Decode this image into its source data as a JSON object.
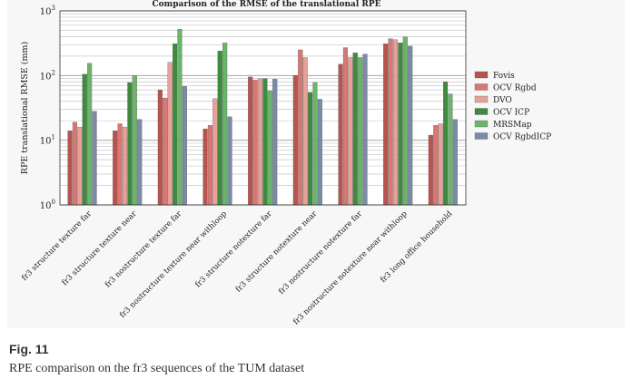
{
  "figure": {
    "label": "Fig. 11",
    "caption": "RPE comparison on the fr3 sequences of the TUM dataset"
  },
  "colors": {
    "Fovis": "#b85450",
    "OCV Rgbd": "#d97872",
    "DVO": "#e8a09a",
    "OCV ICP": "#3f8a3f",
    "MRSMap": "#6bb56b",
    "OCV RgbdICP": "#7b8ba6"
  },
  "chart_data": {
    "type": "bar",
    "title": "Comparison of the RMSE of the translational RPE",
    "ylabel": "RPE translational RMSE (mm)",
    "xlabel": "",
    "yscale": "log",
    "ylim": [
      1,
      1000
    ],
    "yticks": [
      {
        "value": 1,
        "base": "10",
        "exp": "0"
      },
      {
        "value": 10,
        "base": "10",
        "exp": "1"
      },
      {
        "value": 100,
        "base": "10",
        "exp": "2"
      },
      {
        "value": 1000,
        "base": "10",
        "exp": "3"
      }
    ],
    "grid": true,
    "legend_position": "right",
    "categories": [
      "fr3 structure texture far",
      "fr3 structure texture near",
      "fr3 nostructure texture far",
      "fr3 nostructure texture near withloop",
      "fr3 structure notexture far",
      "fr3 structure notexture near",
      "fr3 nostructure notexture far",
      "fr3 nostructure notexture near withloop",
      "fr3 long office household"
    ],
    "series": [
      {
        "name": "Fovis",
        "values": [
          14,
          14,
          60,
          15,
          95,
          100,
          150,
          310,
          12
        ]
      },
      {
        "name": "OCV Rgbd",
        "values": [
          19,
          18,
          45,
          17,
          85,
          250,
          270,
          370,
          17
        ]
      },
      {
        "name": "DVO",
        "values": [
          16,
          16,
          160,
          44,
          90,
          190,
          190,
          360,
          18
        ]
      },
      {
        "name": "OCV ICP",
        "values": [
          105,
          78,
          310,
          240,
          90,
          55,
          225,
          320,
          80
        ]
      },
      {
        "name": "MRSMap",
        "values": [
          155,
          100,
          520,
          320,
          58,
          78,
          190,
          395,
          52
        ]
      },
      {
        "name": "OCV RgbdICP",
        "values": [
          28,
          21,
          68,
          23,
          88,
          43,
          215,
          285,
          21
        ]
      }
    ]
  }
}
